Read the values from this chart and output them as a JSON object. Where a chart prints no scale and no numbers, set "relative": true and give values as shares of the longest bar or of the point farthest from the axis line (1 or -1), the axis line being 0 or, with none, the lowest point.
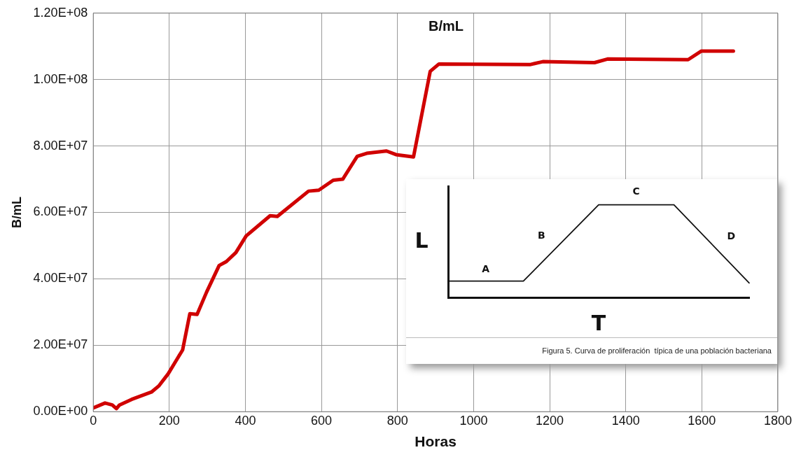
{
  "chart_data": [
    {
      "type": "line",
      "title": "B/mL",
      "xlabel": "Horas",
      "ylabel": "B/mL",
      "x": [
        0,
        31,
        50,
        61,
        69,
        101,
        153,
        172,
        197,
        216,
        235,
        254,
        273,
        298,
        331,
        350,
        375,
        402,
        465,
        484,
        566,
        593,
        631,
        656,
        694,
        719,
        771,
        796,
        842,
        886,
        909,
        1148,
        1182,
        1318,
        1352,
        1564,
        1599,
        1683
      ],
      "series": [
        {
          "color": "#d00000",
          "values": [
            1100000,
            2600000,
            2000000,
            900000,
            2000000,
            3700000,
            5900000,
            7700000,
            11400000,
            15000000,
            18600000,
            29500000,
            29300000,
            36000000,
            44000000,
            45200000,
            47900000,
            52900000,
            59000000,
            58800000,
            66400000,
            66700000,
            69700000,
            70000000,
            76900000,
            77800000,
            78500000,
            77400000,
            76700000,
            102500000,
            104700000,
            104500000,
            105400000,
            105100000,
            106200000,
            106000000,
            108600000,
            108600000
          ]
        }
      ],
      "xlim": [
        0,
        1800
      ],
      "xticks": [
        0,
        200,
        400,
        600,
        800,
        1000,
        1200,
        1400,
        1600,
        1800
      ],
      "ylim": [
        0,
        120000000
      ],
      "yticks": [
        {
          "value": 0,
          "label": "0.00E+00"
        },
        {
          "value": 20000000,
          "label": "2.00E+07"
        },
        {
          "value": 40000000,
          "label": "4.00E+07"
        },
        {
          "value": 60000000,
          "label": "6.00E+07"
        },
        {
          "value": 80000000,
          "label": "8.00E+07"
        },
        {
          "value": 100000000,
          "label": "1.00E+08"
        },
        {
          "value": 120000000,
          "label": "1.20E+08"
        }
      ],
      "grid": true,
      "legend": false,
      "marker": "none",
      "line_style": "solid"
    },
    {
      "type": "line",
      "relative": true,
      "xlabel": "T",
      "ylabel": "L",
      "categories": [
        null,
        null,
        null,
        null,
        null
      ],
      "series": [
        {
          "color": "#111111",
          "values": [
            0.18,
            0.18,
            1,
            1,
            0.16
          ]
        }
      ],
      "grid": false,
      "legend": false,
      "marker": "none",
      "line_style": "solid",
      "annotations": [
        "A",
        "B",
        "C",
        "D",
        "Figura 5. Curva de proliferación  típica de una población bacteriana"
      ]
    }
  ]
}
